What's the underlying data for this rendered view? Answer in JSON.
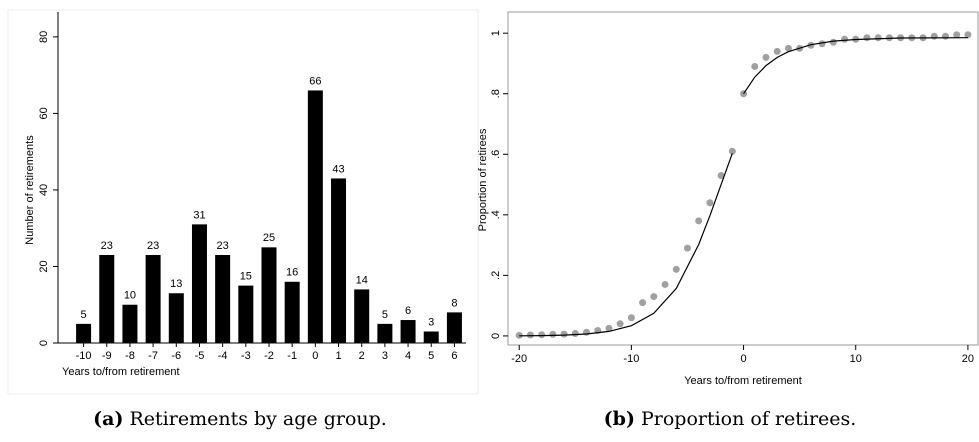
{
  "chart_data": [
    {
      "type": "bar",
      "caption_label": "(a)",
      "caption": "Retirements by age group.",
      "xlabel": "Years to/from retirement",
      "ylabel": "Number of retirements",
      "categories": [
        "-10",
        "-9",
        "-8",
        "-7",
        "-6",
        "-5",
        "-4",
        "-3",
        "-2",
        "-1",
        "0",
        "1",
        "2",
        "3",
        "4",
        "5",
        "6"
      ],
      "values": [
        5,
        23,
        10,
        23,
        13,
        31,
        23,
        15,
        25,
        16,
        66,
        43,
        14,
        5,
        6,
        3,
        8
      ],
      "color": "#000000",
      "ylim": [
        0,
        86.5
      ],
      "yticks": [
        0,
        20,
        40,
        60,
        80
      ]
    },
    {
      "type": "scatter",
      "caption_label": "(b)",
      "caption": "Proportion of retirees.",
      "xlabel": "Years to/from retirement",
      "ylabel": "Proportion of retirees",
      "xlim": [
        -21,
        20.9
      ],
      "ylim": [
        -0.03,
        1.07
      ],
      "xticks": [
        -20,
        -10,
        0,
        10,
        20
      ],
      "yticks": [
        0,
        {
          "value": 0.2,
          "label": ".2"
        },
        {
          "value": 0.4,
          "label": ".4"
        },
        {
          "value": 0.6,
          "label": ".6"
        },
        {
          "value": 0.8,
          "label": ".8"
        },
        1
      ],
      "series": [
        {
          "color": "#a0a0a0",
          "kind": "points",
          "x": [
            -20,
            -19,
            -18,
            -17,
            -16,
            -15,
            -14,
            -13,
            -12,
            -11,
            -10,
            -9,
            -8,
            -7,
            -6,
            -5,
            -4,
            -3,
            -2,
            -1,
            0,
            1,
            2,
            3,
            4,
            5,
            6,
            7,
            8,
            9,
            10,
            11,
            12,
            13,
            14,
            15,
            16,
            17,
            18,
            19,
            20
          ],
          "values": [
            0.002,
            0.003,
            0.004,
            0.005,
            0.006,
            0.008,
            0.012,
            0.018,
            0.025,
            0.04,
            0.06,
            0.11,
            0.13,
            0.17,
            0.22,
            0.29,
            0.38,
            0.44,
            0.53,
            0.61,
            0.8,
            0.89,
            0.92,
            0.94,
            0.95,
            0.95,
            0.96,
            0.965,
            0.97,
            0.98,
            0.98,
            0.985,
            0.985,
            0.985,
            0.985,
            0.985,
            0.985,
            0.99,
            0.99,
            0.995,
            0.995
          ]
        },
        {
          "color": "#000000",
          "kind": "line",
          "x": [
            -20,
            -18,
            -16,
            -14,
            -12,
            -10,
            -8,
            -6,
            -4,
            -3,
            -2,
            -1,
            null,
            0,
            1,
            2,
            3,
            4,
            6,
            8,
            10,
            14,
            20
          ],
          "values": [
            0.0005,
            0.0012,
            0.0028,
            0.0064,
            0.0148,
            0.0336,
            0.0746,
            0.157,
            0.302,
            0.397,
            0.5,
            0.603,
            null,
            0.8,
            0.855,
            0.893,
            0.92,
            0.939,
            0.962,
            0.974,
            0.979,
            0.984,
            0.985
          ]
        }
      ]
    }
  ]
}
